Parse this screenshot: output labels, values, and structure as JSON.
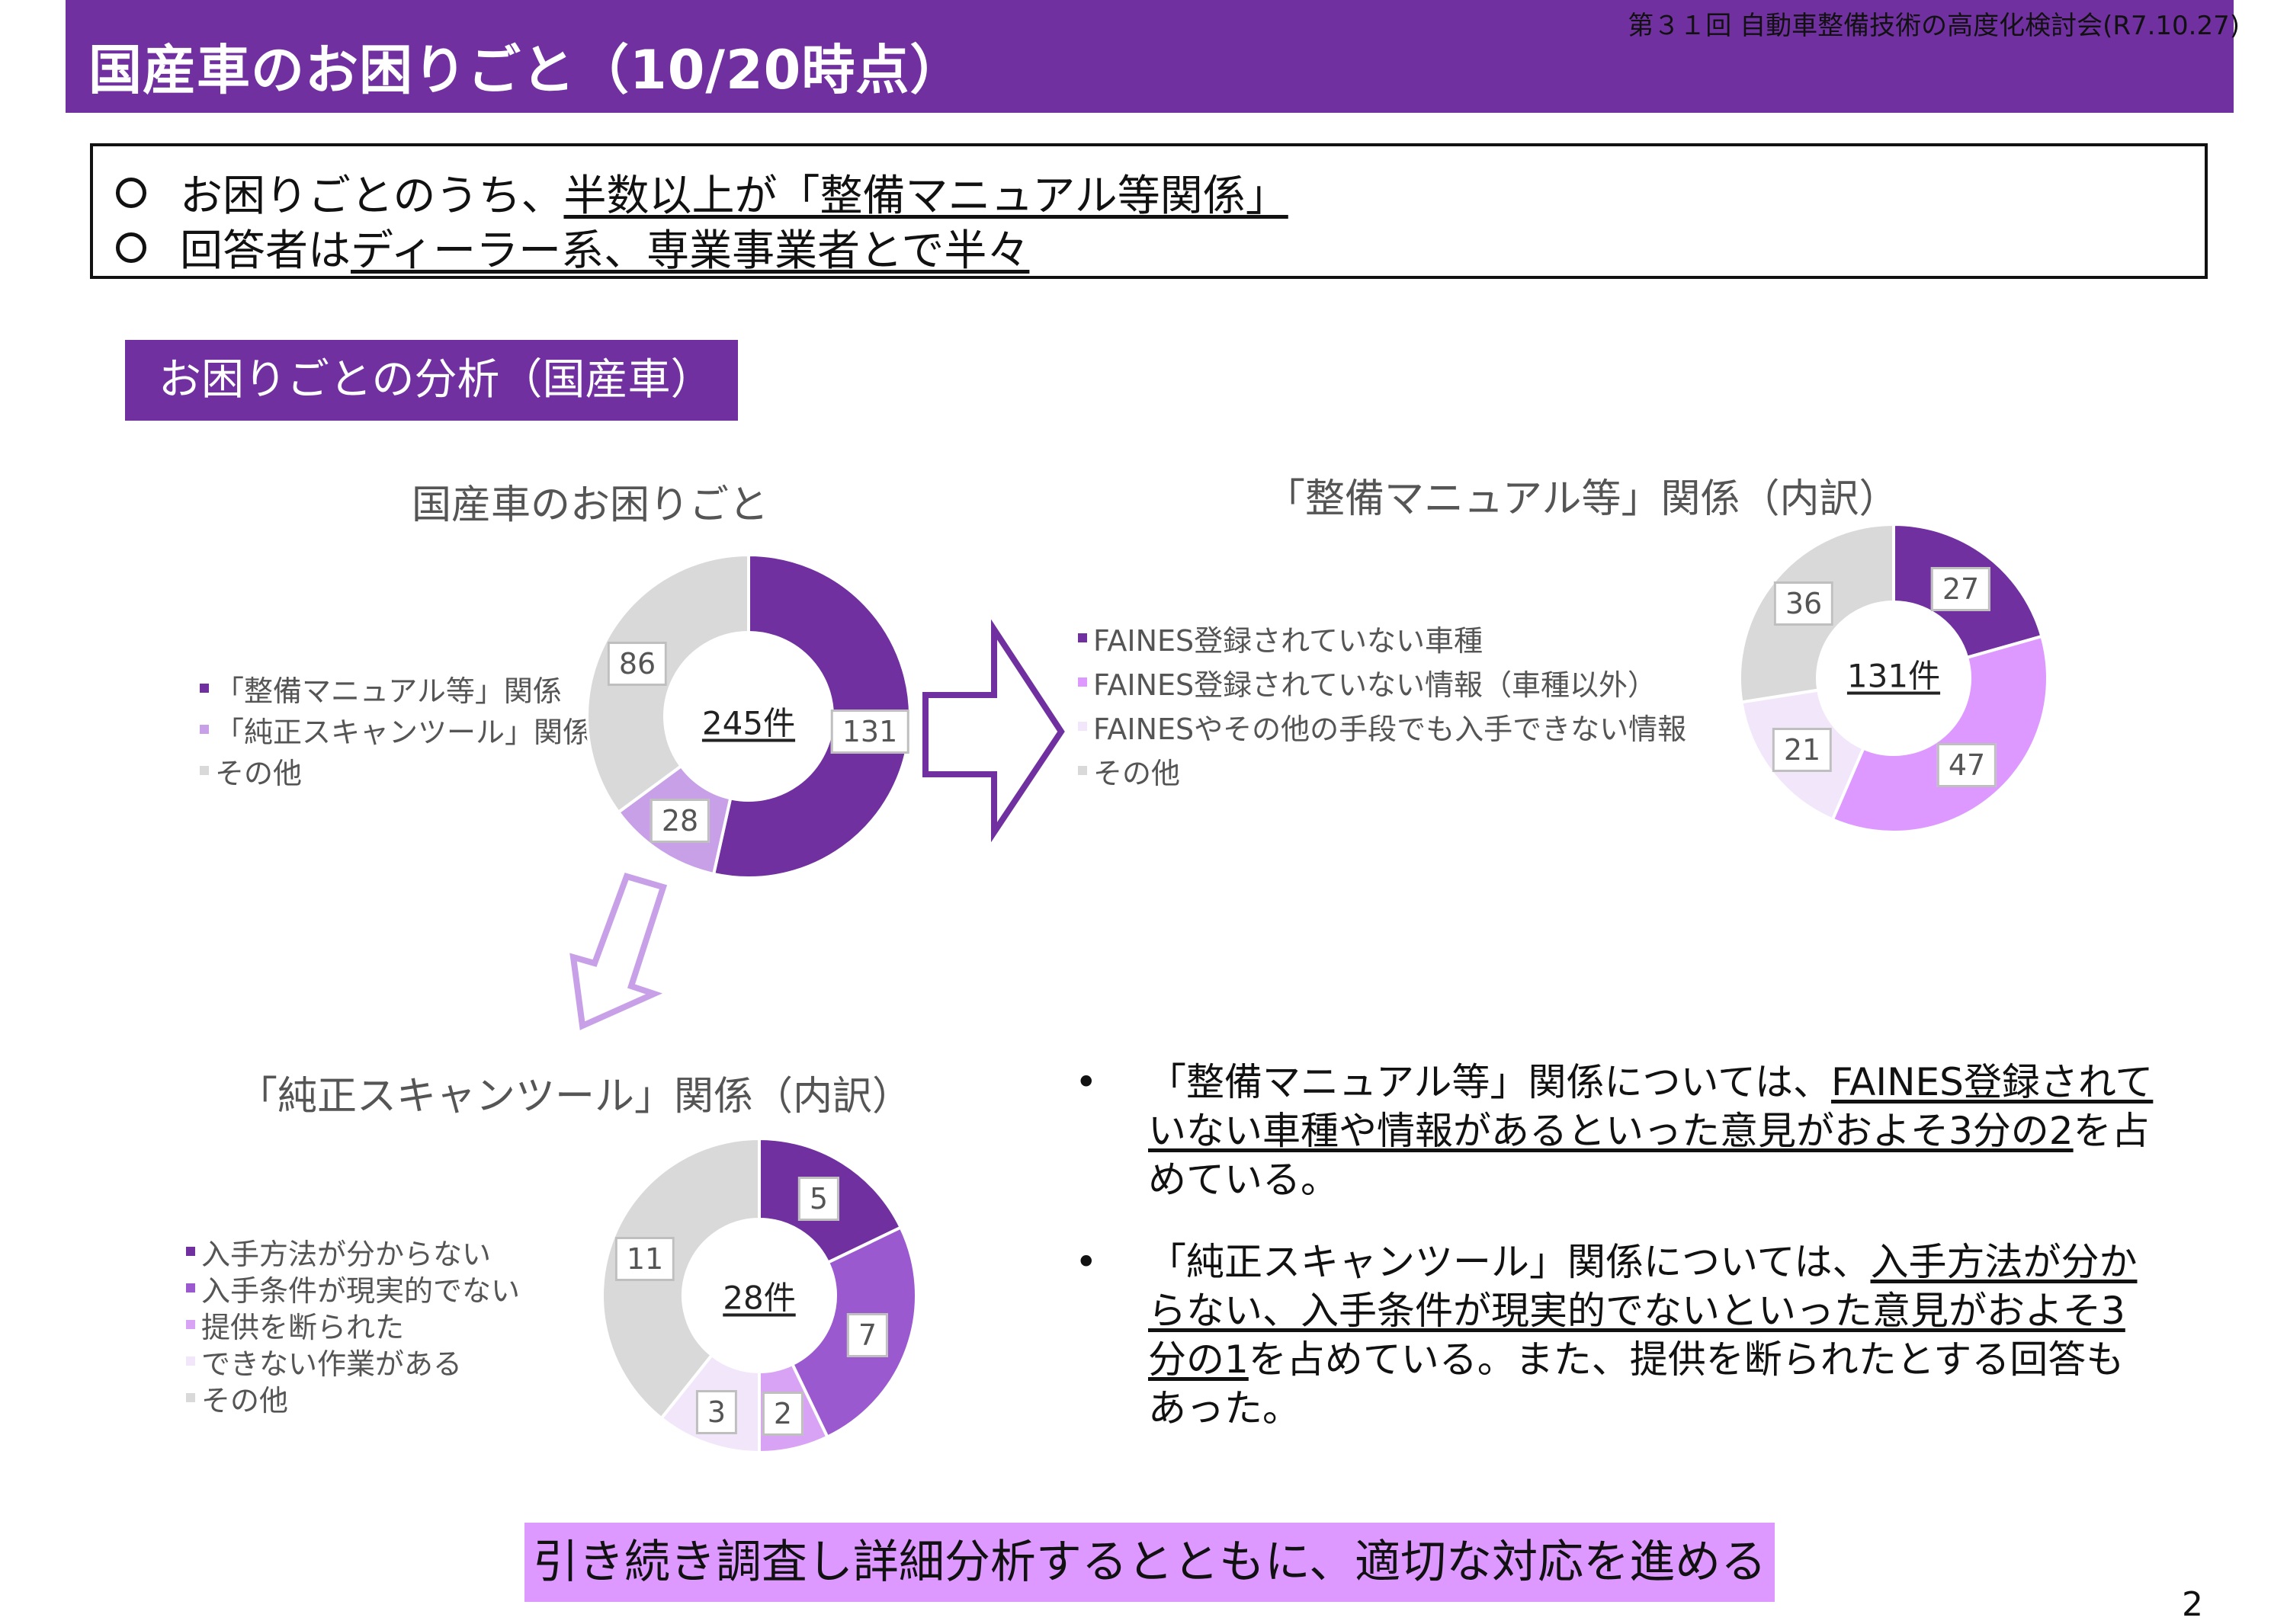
{
  "header": {
    "title": "国産車のお困りごと（10/20時点）",
    "meeting": "第３１回 自動車整備技術の高度化検討会(R7.10.27)"
  },
  "summary": {
    "line1_plain": "お困りごとのうち、",
    "line1_underlined": "半数以上が「整備マニュアル等関係」",
    "line2_plain": "回答者は",
    "line2_underlined": "ディーラー系、専業事業者とで半々"
  },
  "section_tag": "お困りごとの分析（国産車）",
  "chart_data": [
    {
      "type": "pie",
      "title": "国産車のお困りごと",
      "center_label": "245件",
      "categories": [
        "「整備マニュアル等」関係",
        "「純正スキャンツール」関係",
        "その他"
      ],
      "values": [
        131,
        28,
        86
      ],
      "colors": [
        "#7030a0",
        "#c8a0e8",
        "#d9d9d9"
      ]
    },
    {
      "type": "pie",
      "title": "「整備マニュアル等」関係（内訳）",
      "center_label": "131件",
      "categories": [
        "FAINES登録されていない車種",
        "FAINES登録されていない情報（車種以外）",
        "FAINESやその他の手段でも入手できない情報",
        "その他"
      ],
      "values": [
        27,
        47,
        21,
        36
      ],
      "colors": [
        "#7030a0",
        "#dd99ff",
        "#f2e6fb",
        "#d9d9d9"
      ]
    },
    {
      "type": "pie",
      "title": "「純正スキャンツール」関係（内訳）",
      "center_label": "28件",
      "categories": [
        "入手方法が分からない",
        "入手条件が現実的でない",
        "提供を断られた",
        "できない作業がある",
        "その他"
      ],
      "values": [
        5,
        7,
        2,
        3,
        11
      ],
      "colors": [
        "#7030a0",
        "#9b59d0",
        "#d9a3f5",
        "#f2e6fb",
        "#d9d9d9"
      ]
    }
  ],
  "bullets": [
    {
      "dot": "•",
      "plain1": "「整備マニュアル等」関係については、",
      "underlined": "FAINES登録されていない車種や情報があるといった意見がおよそ3分の2",
      "plain2": "を占めている。"
    },
    {
      "dot": "•",
      "plain1": "「純正スキャンツール」関係については、",
      "underlined": "入手方法が分からない、入手条件が現実的でないといった意見がおよそ3分の1",
      "plain2": "を占めている。また、提供を断られたとする回答もあった。"
    }
  ],
  "conclusion": "引き続き調査し詳細分析するとともに、適切な対応を進める",
  "page_number": "2"
}
